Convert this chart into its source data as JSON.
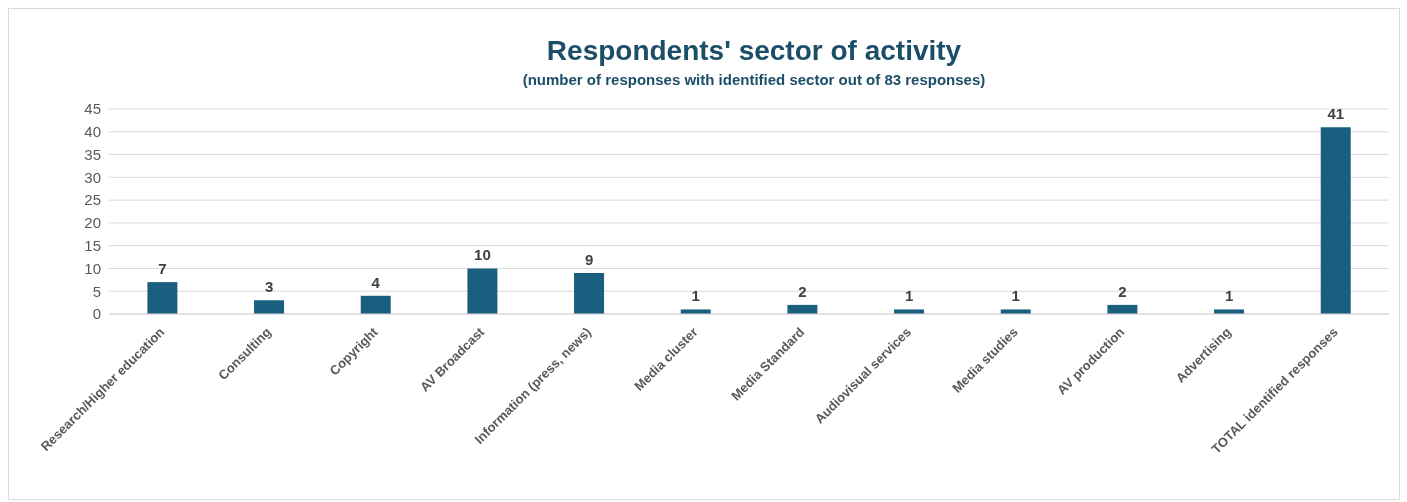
{
  "chart_data": {
    "type": "bar",
    "title": "Respondents' sector of activity",
    "subtitle": "(number of responses with identified sector out of 83 responses)",
    "categories": [
      "Research/Higher education",
      "Consulting",
      "Copyright",
      "AV Broadcast",
      "Information (press, news)",
      "Media cluster",
      "Media Standard",
      "Audiovisual services",
      "Media studies",
      "AV production",
      "Advertising",
      "TOTAL identified responses"
    ],
    "values": [
      7,
      3,
      4,
      10,
      9,
      1,
      2,
      1,
      1,
      2,
      1,
      41
    ],
    "color": "#1a5f80",
    "ylim": [
      0,
      45
    ],
    "yticks": [
      0,
      5,
      10,
      15,
      20,
      25,
      30,
      35,
      40,
      45
    ],
    "grid": "y",
    "data_labels": true
  }
}
